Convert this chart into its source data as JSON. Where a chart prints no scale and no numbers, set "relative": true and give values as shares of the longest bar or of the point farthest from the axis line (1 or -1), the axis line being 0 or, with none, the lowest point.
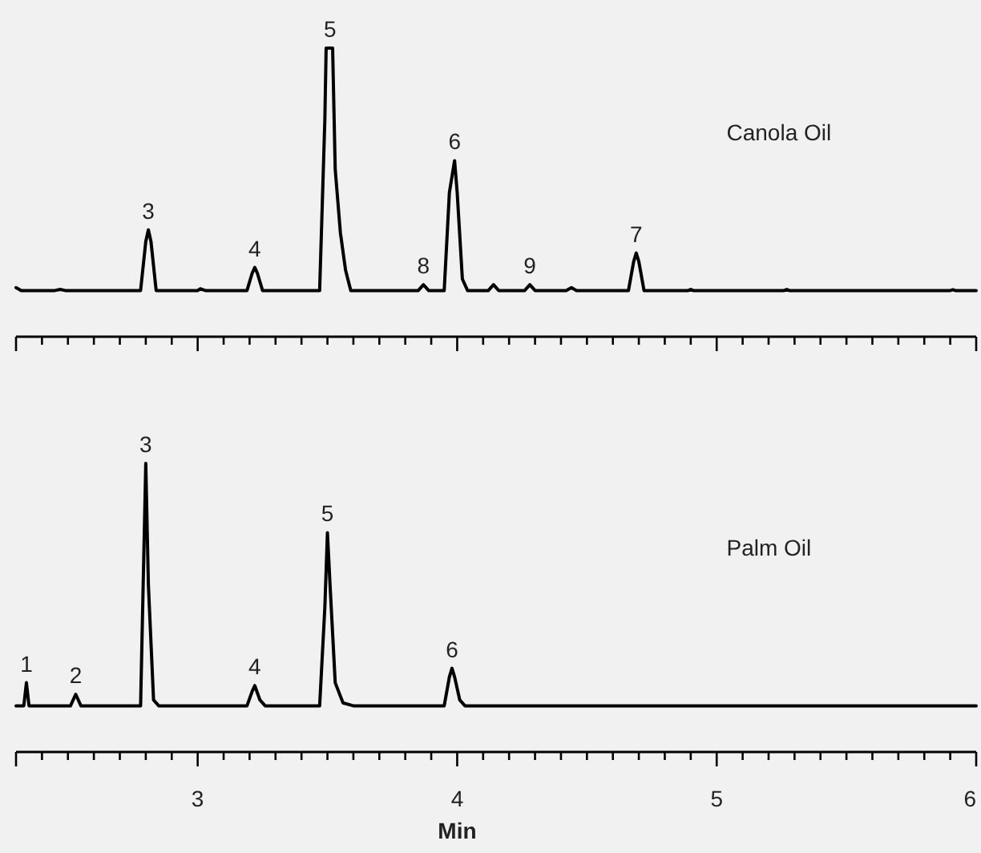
{
  "chart_data": [
    {
      "type": "line",
      "relative": true,
      "tick_labels": false,
      "xlim": [
        2.3,
        6
      ],
      "xticks": [
        {
          "value": 2.3,
          "label": null
        },
        {
          "value": 2.4,
          "label": null
        },
        {
          "value": 2.5,
          "label": null
        },
        {
          "value": 2.6,
          "label": null
        },
        {
          "value": 2.7,
          "label": null
        },
        {
          "value": 2.8,
          "label": null
        },
        {
          "value": 2.9,
          "label": null
        },
        3,
        {
          "value": 3.1,
          "label": null
        },
        {
          "value": 3.2,
          "label": null
        },
        {
          "value": 3.3,
          "label": null
        },
        {
          "value": 3.4,
          "label": null
        },
        {
          "value": 3.5,
          "label": null
        },
        {
          "value": 3.6,
          "label": null
        },
        {
          "value": 3.7,
          "label": null
        },
        {
          "value": 3.8,
          "label": null
        },
        {
          "value": 3.9,
          "label": null
        },
        4,
        {
          "value": 4.1,
          "label": null
        },
        {
          "value": 4.2,
          "label": null
        },
        {
          "value": 4.3,
          "label": null
        },
        {
          "value": 4.4,
          "label": null
        },
        {
          "value": 4.5,
          "label": null
        },
        {
          "value": 4.6,
          "label": null
        },
        {
          "value": 4.7,
          "label": null
        },
        {
          "value": 4.8,
          "label": null
        },
        {
          "value": 4.9,
          "label": null
        },
        5,
        {
          "value": 5.1,
          "label": null
        },
        {
          "value": 5.2,
          "label": null
        },
        {
          "value": 5.3,
          "label": null
        },
        {
          "value": 5.4,
          "label": null
        },
        {
          "value": 5.5,
          "label": null
        },
        {
          "value": 5.6,
          "label": null
        },
        {
          "value": 5.7,
          "label": null
        },
        {
          "value": 5.8,
          "label": null
        },
        {
          "value": 5.9,
          "label": null
        },
        6
      ],
      "series": [
        {
          "name": "Canola Oil",
          "color": "#000000",
          "x": [
            2.3,
            2.32,
            2.45,
            2.47,
            2.49,
            2.78,
            2.8,
            2.81,
            2.82,
            2.84,
            3.0,
            3.01,
            3.03,
            3.19,
            3.21,
            3.22,
            3.23,
            3.25,
            3.47,
            3.49,
            3.495,
            3.52,
            3.53,
            3.55,
            3.57,
            3.59,
            3.85,
            3.87,
            3.89,
            3.95,
            3.97,
            3.99,
            4.0,
            4.02,
            4.04,
            4.12,
            4.14,
            4.16,
            4.26,
            4.28,
            4.3,
            4.42,
            4.44,
            4.46,
            4.66,
            4.68,
            4.69,
            4.7,
            4.72,
            4.89,
            4.9,
            4.91,
            5.26,
            5.27,
            5.28,
            5.9,
            5.91,
            5.92,
            6.0
          ],
          "values": [
            0.17,
            0.16,
            0.16,
            0.164,
            0.16,
            0.16,
            0.33,
            0.37,
            0.33,
            0.16,
            0.16,
            0.166,
            0.16,
            0.16,
            0.22,
            0.24,
            0.22,
            0.16,
            0.16,
            0.75,
            1,
            1,
            0.58,
            0.36,
            0.23,
            0.16,
            0.16,
            0.18,
            0.16,
            0.16,
            0.5,
            0.61,
            0.5,
            0.2,
            0.16,
            0.16,
            0.18,
            0.16,
            0.16,
            0.18,
            0.16,
            0.16,
            0.17,
            0.16,
            0.16,
            0.26,
            0.29,
            0.26,
            0.16,
            0.16,
            0.164,
            0.16,
            0.16,
            0.164,
            0.16,
            0.16,
            0.163,
            0.16,
            0.16
          ]
        }
      ],
      "annotations": [
        {
          "text": "3",
          "x": 2.81,
          "y": 0.37
        },
        {
          "text": "4",
          "x": 3.22,
          "y": 0.24
        },
        {
          "text": "5",
          "x": 3.51,
          "y": 1
        },
        {
          "text": "8",
          "x": 3.87,
          "y": 0.18
        },
        {
          "text": "6",
          "x": 3.99,
          "y": 0.61
        },
        {
          "text": "9",
          "x": 4.28,
          "y": 0.18
        },
        {
          "text": "7",
          "x": 4.69,
          "y": 0.29
        }
      ]
    },
    {
      "type": "line",
      "relative": true,
      "tick_labels": "x",
      "xlim": [
        2.3,
        6
      ],
      "xlabel": "Min",
      "xticks": [
        {
          "value": 2.3,
          "label": null
        },
        {
          "value": 2.4,
          "label": null
        },
        {
          "value": 2.5,
          "label": null
        },
        {
          "value": 2.6,
          "label": null
        },
        {
          "value": 2.7,
          "label": null
        },
        {
          "value": 2.8,
          "label": null
        },
        {
          "value": 2.9,
          "label": null
        },
        3,
        {
          "value": 3.1,
          "label": null
        },
        {
          "value": 3.2,
          "label": null
        },
        {
          "value": 3.3,
          "label": null
        },
        {
          "value": 3.4,
          "label": null
        },
        {
          "value": 3.5,
          "label": null
        },
        {
          "value": 3.6,
          "label": null
        },
        {
          "value": 3.7,
          "label": null
        },
        {
          "value": 3.8,
          "label": null
        },
        {
          "value": 3.9,
          "label": null
        },
        4,
        {
          "value": 4.1,
          "label": null
        },
        {
          "value": 4.2,
          "label": null
        },
        {
          "value": 4.3,
          "label": null
        },
        {
          "value": 4.4,
          "label": null
        },
        {
          "value": 4.5,
          "label": null
        },
        {
          "value": 4.6,
          "label": null
        },
        {
          "value": 4.7,
          "label": null
        },
        {
          "value": 4.8,
          "label": null
        },
        {
          "value": 4.9,
          "label": null
        },
        5,
        {
          "value": 5.1,
          "label": null
        },
        {
          "value": 5.2,
          "label": null
        },
        {
          "value": 5.3,
          "label": null
        },
        {
          "value": 5.4,
          "label": null
        },
        {
          "value": 5.5,
          "label": null
        },
        {
          "value": 5.6,
          "label": null
        },
        {
          "value": 5.7,
          "label": null
        },
        {
          "value": 5.8,
          "label": null
        },
        {
          "value": 5.9,
          "label": null
        },
        6
      ],
      "series": [
        {
          "name": "Palm Oil",
          "color": "#000000",
          "x": [
            2.3,
            2.33,
            2.34,
            2.35,
            2.51,
            2.53,
            2.55,
            2.78,
            2.79,
            2.8,
            2.81,
            2.83,
            2.85,
            3.19,
            3.21,
            3.22,
            3.24,
            3.26,
            3.47,
            3.49,
            3.5,
            3.51,
            3.53,
            3.56,
            3.6,
            3.95,
            3.97,
            3.98,
            3.99,
            4.01,
            4.03,
            6.0
          ],
          "values": [
            0.16,
            0.16,
            0.24,
            0.16,
            0.16,
            0.2,
            0.16,
            0.16,
            0.58,
            1,
            0.58,
            0.18,
            0.16,
            0.16,
            0.21,
            0.23,
            0.18,
            0.16,
            0.16,
            0.5,
            0.76,
            0.58,
            0.24,
            0.17,
            0.16,
            0.16,
            0.26,
            0.29,
            0.26,
            0.18,
            0.16,
            0.16
          ]
        }
      ],
      "annotations": [
        {
          "text": "1",
          "x": 2.34,
          "y": 0.24
        },
        {
          "text": "2",
          "x": 2.53,
          "y": 0.2
        },
        {
          "text": "3",
          "x": 2.8,
          "y": 1
        },
        {
          "text": "4",
          "x": 3.22,
          "y": 0.23
        },
        {
          "text": "5",
          "x": 3.5,
          "y": 0.76
        },
        {
          "text": "6",
          "x": 3.98,
          "y": 0.29
        }
      ]
    }
  ]
}
